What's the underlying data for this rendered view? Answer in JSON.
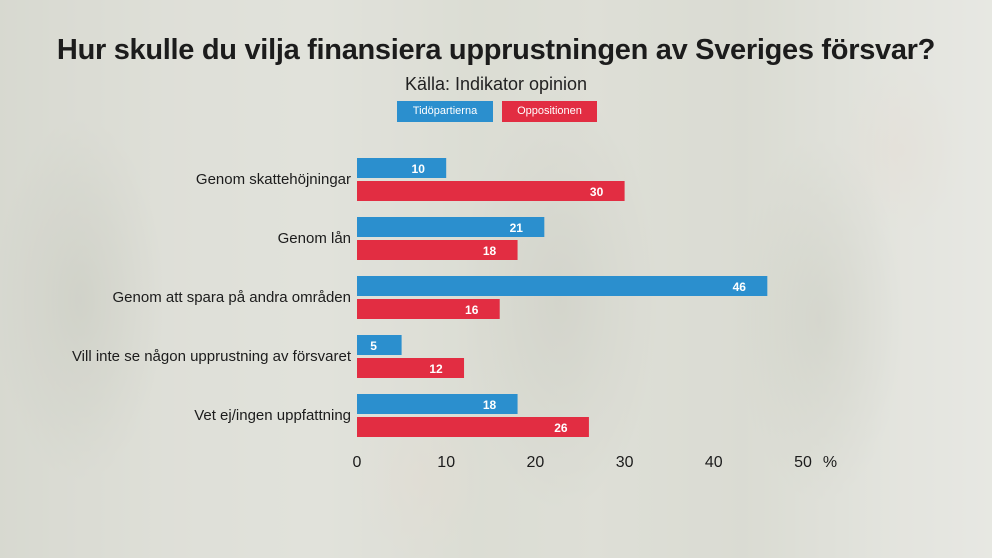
{
  "chart_data": {
    "type": "bar",
    "orientation": "horizontal",
    "title": "Hur skulle du vilja finansiera upprustningen av Sveriges försvar?",
    "subtitle": "Källa: Indikator opinion",
    "categories": [
      "Genom skattehöjningar",
      "Genom lån",
      "Genom att spara på andra områden",
      "Vill inte se någon upprustning av försvaret",
      "Vet ej/ingen uppfattning"
    ],
    "series": [
      {
        "name": "Tidöpartierna",
        "color": "#2b8fce",
        "values": [
          10,
          21,
          46,
          5,
          18
        ]
      },
      {
        "name": "Oppositionen",
        "color": "#e22d42",
        "values": [
          30,
          18,
          16,
          12,
          26
        ]
      }
    ],
    "xlim": [
      0,
      50
    ],
    "xticks": [
      "0",
      "10",
      "20",
      "30",
      "40",
      "50"
    ],
    "xunit": "%",
    "legend": "top-center"
  }
}
